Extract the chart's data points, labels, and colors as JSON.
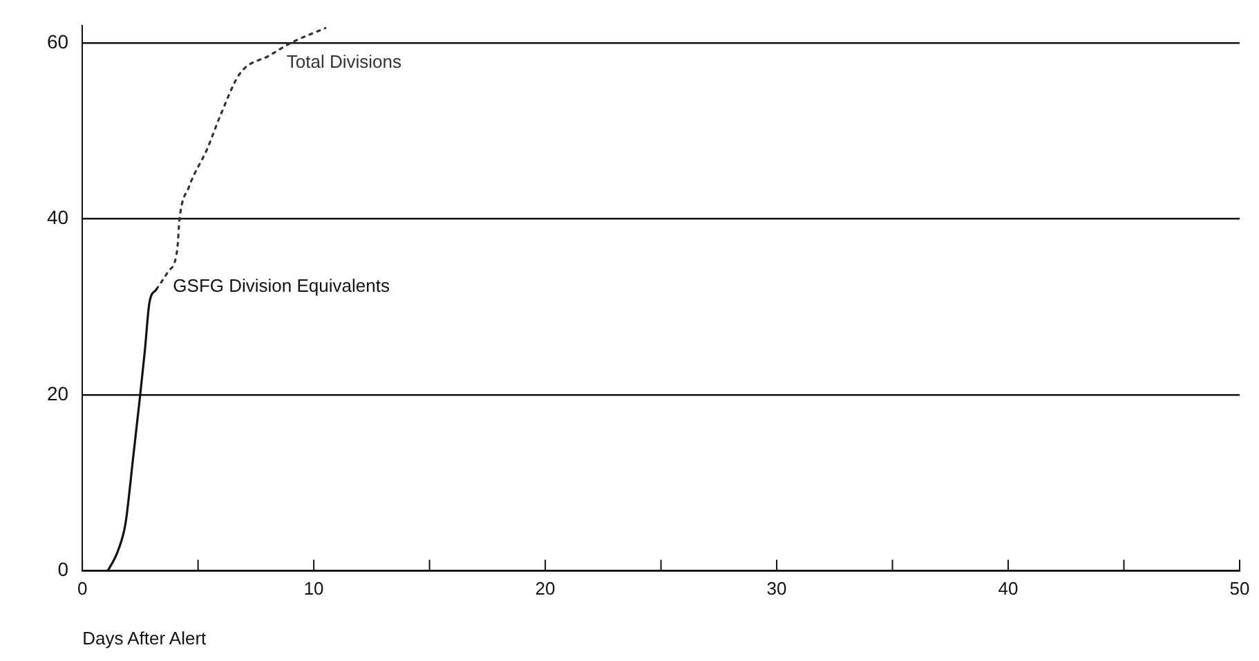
{
  "chart_data": {
    "type": "line",
    "xlabel": "Days After Alert",
    "xlim": [
      0,
      50
    ],
    "xticks": [
      0,
      {
        "value": 5,
        "label": null
      },
      10,
      {
        "value": 15,
        "label": null
      },
      20,
      {
        "value": 25,
        "label": null
      },
      30,
      {
        "value": 35,
        "label": null
      },
      40,
      {
        "value": 45,
        "label": null
      },
      50
    ],
    "ylim": [
      0,
      62
    ],
    "yticks": [
      0,
      20,
      40,
      60
    ],
    "grid": "y",
    "legend": false,
    "marker": "none",
    "series": [
      {
        "name": "GSFG Division Equivalents",
        "color": "#111111",
        "line_style": "solid",
        "x": [
          1.1,
          1.5,
          1.8,
          1.9,
          2.2,
          2.5,
          2.7,
          2.9,
          3.2
        ],
        "values": [
          0,
          2,
          4.5,
          6,
          13,
          20,
          25,
          30.5,
          32
        ]
      },
      {
        "name": "Total Divisions",
        "color": "#333333",
        "line_style": "dotted",
        "x": [
          3.2,
          3.7,
          4.1,
          4.2,
          4.6,
          5.4,
          6,
          6.8,
          8.1,
          9,
          10.5
        ],
        "values": [
          32,
          34,
          36.5,
          40,
          43.6,
          48,
          52,
          56.5,
          58.6,
          60,
          61.7
        ]
      }
    ]
  }
}
